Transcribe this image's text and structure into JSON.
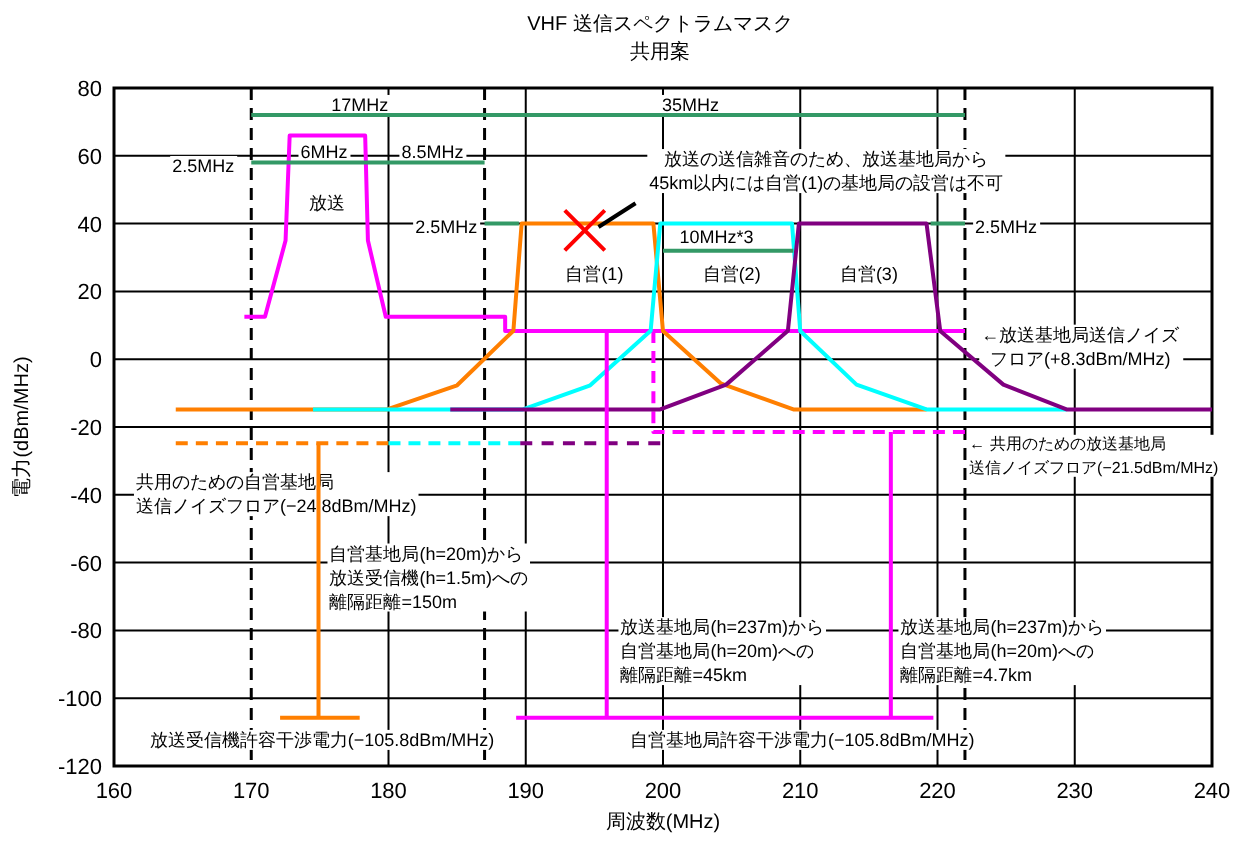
{
  "chart_data": {
    "type": "line",
    "title": "VHF 送信スペクトラムマスク",
    "subtitle": "共用案",
    "xlabel": "周波数(MHz)",
    "ylabel": "電力(dBm/MHz)",
    "xlim": [
      160,
      240
    ],
    "ylim": [
      -120,
      80
    ],
    "xticks": [
      160,
      170,
      180,
      190,
      200,
      210,
      220,
      230,
      240
    ],
    "yticks": [
      -120,
      -100,
      -80,
      -60,
      -40,
      -20,
      0,
      20,
      40,
      60,
      80
    ],
    "grid": true,
    "marker": "none",
    "series": [
      {
        "color": "#ff00ff",
        "x": [
          169.5,
          171,
          172.5,
          172.8,
          178.3,
          178.5,
          179.8,
          188.5,
          188.5,
          222
        ],
        "values": [
          12.5,
          12.5,
          35,
          66,
          66,
          35,
          12.5,
          12.5,
          8.3,
          8.3
        ]
      },
      {
        "color": "#ff00ff",
        "line_style": "dashed",
        "x": [
          199.3,
          199.3,
          222
        ],
        "values": [
          8.3,
          -21.5,
          -21.5
        ]
      },
      {
        "color": "#ff7f00",
        "x": [
          164.5,
          179.9,
          185,
          189.1,
          189.7,
          199.3,
          200,
          204.2,
          209.5,
          219.2
        ],
        "values": [
          -14.8,
          -14.8,
          -7.7,
          8.4,
          40,
          40,
          8.3,
          -7.1,
          -14.8,
          -14.8
        ]
      },
      {
        "color": "#ff7f00",
        "line_style": "dashed",
        "x": [
          164.5,
          180
        ],
        "values": [
          -24.8,
          -24.8
        ]
      },
      {
        "color": "#00ffff",
        "x": [
          174.5,
          189.8,
          194.7,
          199.1,
          199.8,
          209.4,
          210,
          214.1,
          219.2,
          229.4
        ],
        "values": [
          -14.8,
          -14.8,
          -7.7,
          8.4,
          40,
          40,
          8.3,
          -7.5,
          -14.8,
          -14.8
        ]
      },
      {
        "color": "#00ffff",
        "line_style": "dashed",
        "x": [
          180,
          189.6
        ],
        "values": [
          -24.8,
          -24.8
        ]
      },
      {
        "color": "#800080",
        "x": [
          184.5,
          199.8,
          204.6,
          209.1,
          209.9,
          219.2,
          220.2,
          224.8,
          229.4,
          240
        ],
        "values": [
          -14.8,
          -14.8,
          -7.5,
          8.4,
          40,
          40,
          8.3,
          -7.5,
          -14.8,
          -14.8
        ]
      },
      {
        "color": "#800080",
        "line_style": "dashed",
        "x": [
          189.6,
          199.8
        ],
        "values": [
          -24.8,
          -24.8
        ]
      },
      {
        "color": "#ff7f00",
        "x": [
          174.9,
          174.9
        ],
        "values": [
          -24.8,
          -105.8
        ]
      },
      {
        "color": "#ff7f00",
        "x": [
          172.1,
          177.9
        ],
        "values": [
          -105.8,
          -105.8
        ]
      },
      {
        "color": "#ff00ff",
        "x": [
          195.9,
          195.9
        ],
        "values": [
          8.3,
          -105.8
        ]
      },
      {
        "color": "#ff00ff",
        "x": [
          216.6,
          216.6
        ],
        "values": [
          -21.5,
          -105.8
        ]
      },
      {
        "color": "#ff00ff",
        "x": [
          189.3,
          219.7
        ],
        "values": [
          -105.8,
          -105.8
        ]
      },
      {
        "color": "#339966",
        "x": [
          170,
          187,
          222
        ],
        "values": [
          72,
          72,
          72
        ]
      },
      {
        "color": "#339966",
        "x": [
          170,
          172.5,
          178.5,
          187
        ],
        "values": [
          58,
          58,
          58,
          58
        ]
      },
      {
        "color": "#339966",
        "x": [
          187,
          189.5
        ],
        "values": [
          40,
          40
        ]
      },
      {
        "color": "#339966",
        "x": [
          200,
          209.5
        ],
        "values": [
          32,
          32
        ]
      },
      {
        "color": "#339966",
        "x": [
          219.5,
          222
        ],
        "values": [
          40,
          40
        ]
      },
      {
        "color": "#000000",
        "x": [
          198,
          195.3
        ],
        "values": [
          46,
          39
        ]
      },
      {
        "type": "scatter",
        "marker": "cross",
        "color": "#ff0000",
        "x": [
          194.3
        ],
        "values": [
          38
        ]
      }
    ],
    "ref_lines": [
      {
        "axis": "x",
        "value": 170,
        "color": "#000000",
        "line_style": "dashed"
      },
      {
        "axis": "x",
        "value": 187,
        "color": "#000000",
        "line_style": "dashed"
      },
      {
        "axis": "x",
        "value": 222,
        "color": "#000000",
        "line_style": "dashed"
      }
    ],
    "annotations": [
      {
        "text": "17MHz",
        "x": 177.9,
        "y": 75
      },
      {
        "text": "35MHz",
        "x": 202,
        "y": 75
      },
      "2.5MHz",
      {
        "text": "6MHz",
        "x": 175.3,
        "y": 61
      },
      "8.5MHz",
      "2.5MHz",
      "10MHz*3",
      "2.5MHz",
      {
        "text": "放送",
        "x": 175.5,
        "y": 46
      },
      {
        "text": "自営(1)",
        "x": 195,
        "y": 25
      },
      {
        "text": "自営(2)",
        "x": 205,
        "y": 25
      },
      {
        "text": "自営(3)",
        "x": 215,
        "y": 25
      },
      "放送の送信雑音のため、放送基地局から45km以内には自営(1)の基地局の設営は不可",
      "←放送基地局送信ノイズフロア(+8.3dBm/MHz)",
      "← 共用のための放送基地局送信ノイズフロア(−21.5dBm/MHz)",
      "共用のための自営基地局送信ノイズフロア(−24.8dBm/MHz)",
      "自営基地局(h=20m)から放送受信機(h=1.5m)への離隔距離=150m",
      "放送基地局(h=237m)から自営基地局(h=20m)への離隔距離=45km",
      "放送基地局(h=237m)から自営基地局(h=20m)への離隔距離=4.7km",
      "放送受信機許容干渉電力(−105.8dBm/MHz)",
      "自営基地局許容干渉電力(−105.8dBm/MHz)"
    ]
  }
}
